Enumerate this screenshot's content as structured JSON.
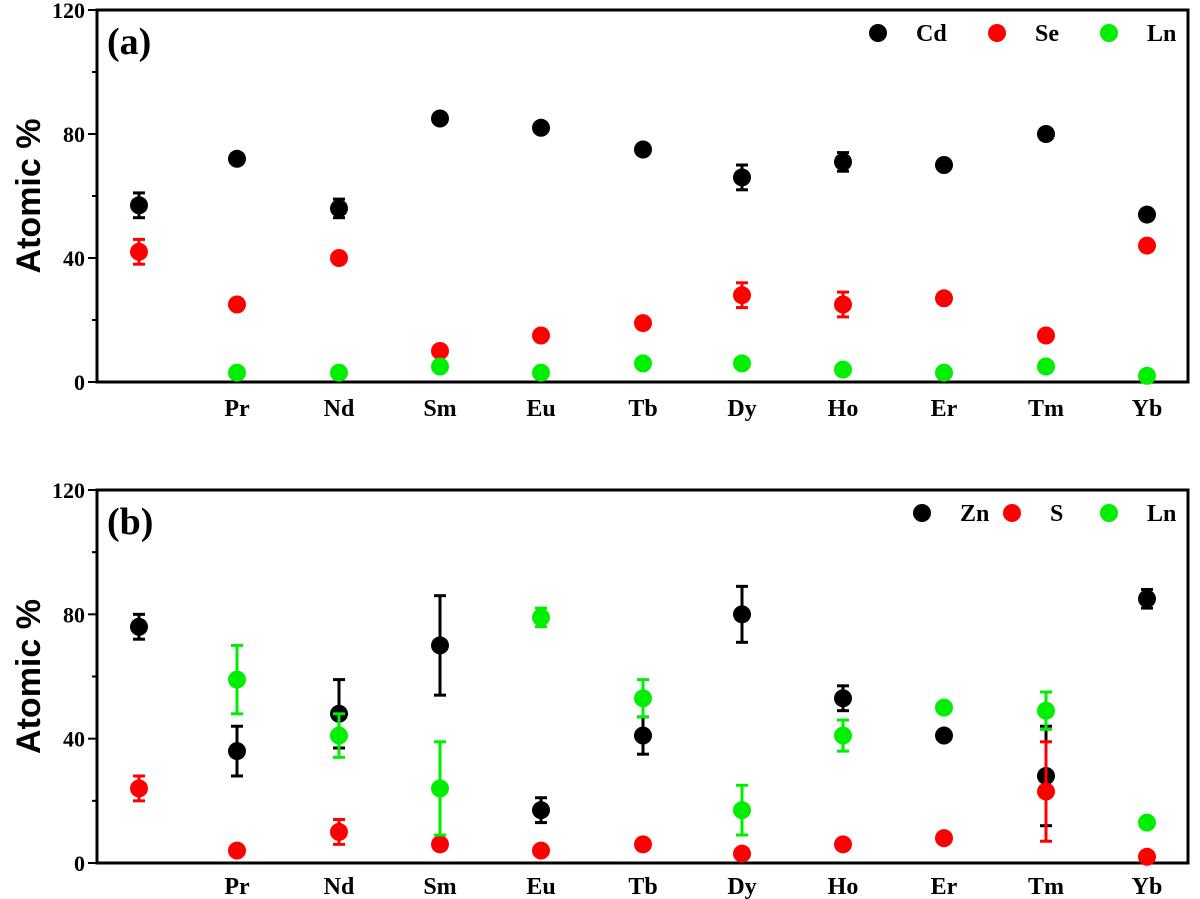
{
  "chart_data": [
    {
      "type": "scatter",
      "panel_label": "(a)",
      "ylabel": "Atomic %",
      "ylim": [
        0,
        120
      ],
      "yticks": [
        0,
        40,
        80,
        120
      ],
      "categories": [
        "",
        "Pr",
        "Nd",
        "Sm",
        "Eu",
        "Tb",
        "Dy",
        "Ho",
        "Er",
        "Tm",
        "Yb"
      ],
      "legend_position": "top-right",
      "series": [
        {
          "name": "Cd",
          "color": "#000000",
          "values": [
            57,
            72,
            56,
            85,
            82,
            75,
            66,
            71,
            70,
            80,
            54
          ],
          "errors": [
            4,
            0,
            3,
            0,
            0,
            0,
            4,
            3,
            0,
            0,
            0
          ]
        },
        {
          "name": "Se",
          "color": "#ff0000",
          "values": [
            42,
            25,
            40,
            10,
            15,
            19,
            28,
            25,
            27,
            15,
            44
          ],
          "errors": [
            4,
            0,
            0,
            0,
            0,
            0,
            4,
            4,
            0,
            0,
            0
          ]
        },
        {
          "name": "Ln",
          "color": "#00ee00",
          "values": [
            null,
            3,
            3,
            5,
            3,
            6,
            6,
            4,
            3,
            5,
            2
          ],
          "errors": [
            0,
            0,
            0,
            0,
            0,
            0,
            0,
            0,
            0,
            0,
            0
          ]
        }
      ]
    },
    {
      "type": "scatter",
      "panel_label": "(b)",
      "ylabel": "Atomic %",
      "ylim": [
        0,
        120
      ],
      "yticks": [
        0,
        40,
        80,
        120
      ],
      "categories": [
        "",
        "Pr",
        "Nd",
        "Sm",
        "Eu",
        "Tb",
        "Dy",
        "Ho",
        "Er",
        "Tm",
        "Yb"
      ],
      "legend_position": "top-right",
      "series": [
        {
          "name": "Zn",
          "color": "#000000",
          "values": [
            76,
            36,
            48,
            70,
            17,
            41,
            80,
            53,
            41,
            28,
            85
          ],
          "errors": [
            4,
            8,
            11,
            16,
            4,
            6,
            9,
            4,
            0,
            16,
            3
          ]
        },
        {
          "name": "S",
          "color": "#ff0000",
          "values": [
            24,
            4,
            10,
            6,
            4,
            6,
            3,
            6,
            8,
            23,
            2
          ],
          "errors": [
            4,
            0,
            4,
            0,
            0,
            0,
            0,
            0,
            0,
            16,
            0
          ]
        },
        {
          "name": "Ln",
          "color": "#00ee00",
          "values": [
            null,
            59,
            41,
            24,
            79,
            53,
            17,
            41,
            50,
            49,
            13
          ],
          "errors": [
            0,
            11,
            7,
            15,
            3,
            6,
            8,
            5,
            0,
            6,
            0
          ]
        }
      ]
    }
  ]
}
